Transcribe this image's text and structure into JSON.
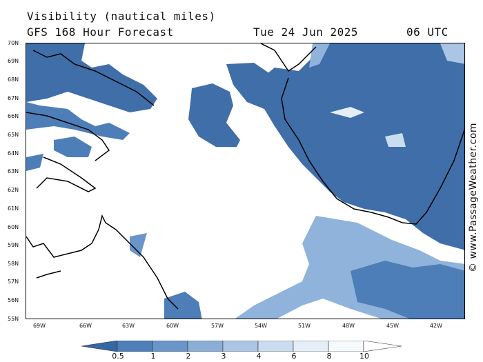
{
  "header": {
    "title": "Visibility (nautical miles)",
    "subtitle": "GFS 168 Hour Forecast",
    "date": "Tue 24 Jun 2025",
    "time": "06 UTC"
  },
  "credit": "© www.PassageWeather.com",
  "axes": {
    "lat_labels": [
      "70N",
      "69N",
      "68N",
      "67N",
      "66N",
      "65N",
      "64N",
      "63N",
      "62N",
      "61N",
      "60N",
      "59N",
      "58N",
      "57N",
      "56N",
      "55N"
    ],
    "lon_labels": [
      "69W",
      "66W",
      "63W",
      "60W",
      "57W",
      "54W",
      "51W",
      "48W",
      "45W",
      "42W"
    ]
  },
  "colorbar": {
    "labels": [
      "0.5",
      "1",
      "2",
      "3",
      "4",
      "6",
      "8",
      "10"
    ],
    "colors": [
      "#3567a3",
      "#4d7eb8",
      "#6a95c8",
      "#8aaed6",
      "#abc6e4",
      "#cadcef",
      "#e5eef8",
      "#ffffff"
    ]
  },
  "colors": {
    "low_visibility": "#3f6ea8",
    "mid_visibility": "#8fb3da",
    "coastline": "#000000"
  }
}
